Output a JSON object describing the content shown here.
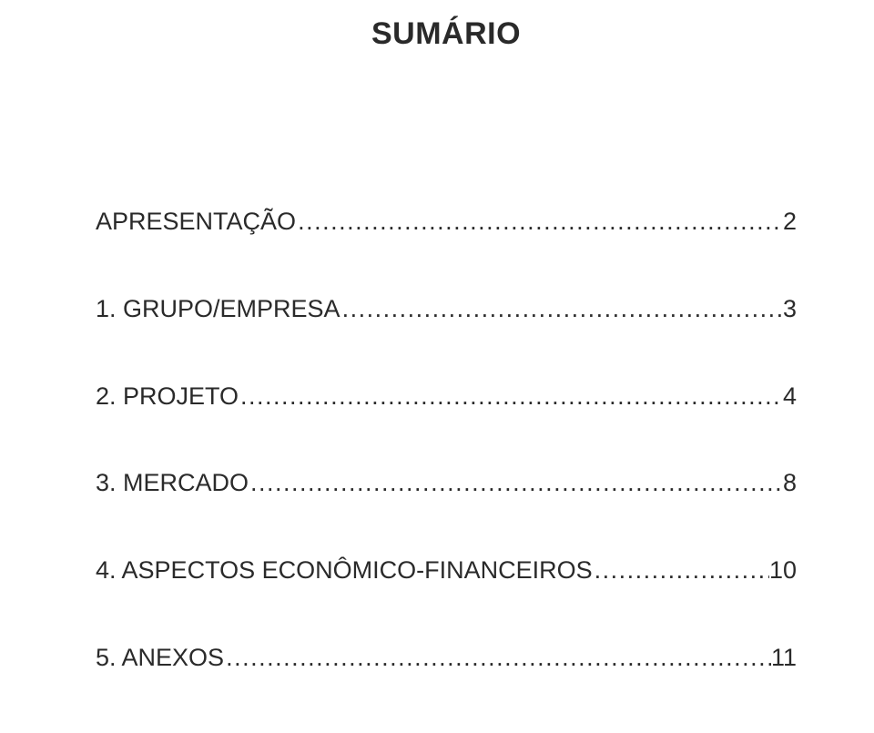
{
  "title": "SUMÁRIO",
  "toc": [
    {
      "label": "APRESENTAÇÃO",
      "page": "2"
    },
    {
      "label": "1. GRUPO/EMPRESA",
      "page": "3"
    },
    {
      "label": "2. PROJETO",
      "page": "4"
    },
    {
      "label": "3. MERCADO",
      "page": "8"
    },
    {
      "label": "4. ASPECTOS ECONÔMICO-FINANCEIROS",
      "page": "10"
    },
    {
      "label": "5. ANEXOS",
      "page": "11"
    }
  ],
  "colors": {
    "background": "#ffffff",
    "text": "#2a2a2a"
  },
  "typography": {
    "title_fontsize_pt": 26,
    "title_fontweight": "bold",
    "entry_fontsize_pt": 20,
    "font_family": "Arial"
  }
}
